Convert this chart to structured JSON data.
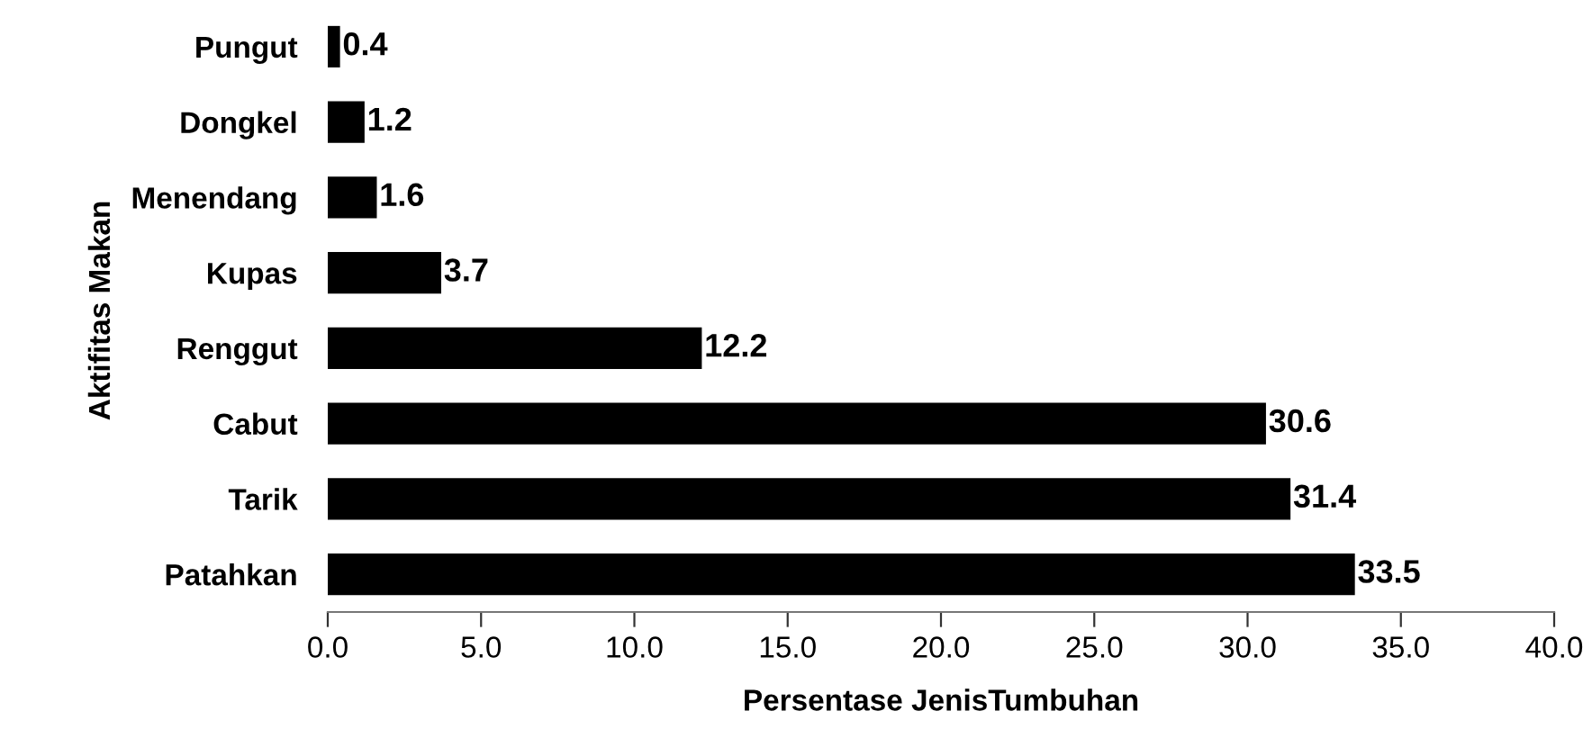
{
  "chart_data": {
    "type": "bar",
    "orientation": "horizontal",
    "xlabel": "Persentase JenisTumbuhan",
    "ylabel": "Aktifitas Makan",
    "categories": [
      "Pungut",
      "Dongkel",
      "Menendang",
      "Kupas",
      "Renggut",
      "Cabut",
      "Tarik",
      "Patahkan"
    ],
    "values": [
      0.4,
      1.2,
      1.6,
      3.7,
      12.2,
      30.6,
      31.4,
      33.5
    ],
    "color": "#000000",
    "xlim": [
      0,
      40
    ],
    "xticks": [
      {
        "value": 0,
        "label": "0.0"
      },
      {
        "value": 5,
        "label": "5.0"
      },
      {
        "value": 10,
        "label": "10.0"
      },
      {
        "value": 15,
        "label": "15.0"
      },
      {
        "value": 20,
        "label": "20.0"
      },
      {
        "value": 25,
        "label": "25.0"
      },
      {
        "value": 30,
        "label": "30.0"
      },
      {
        "value": 35,
        "label": "35.0"
      },
      {
        "value": 40,
        "label": "40.0"
      }
    ],
    "data_labels": true,
    "grid": false,
    "legend": false
  }
}
